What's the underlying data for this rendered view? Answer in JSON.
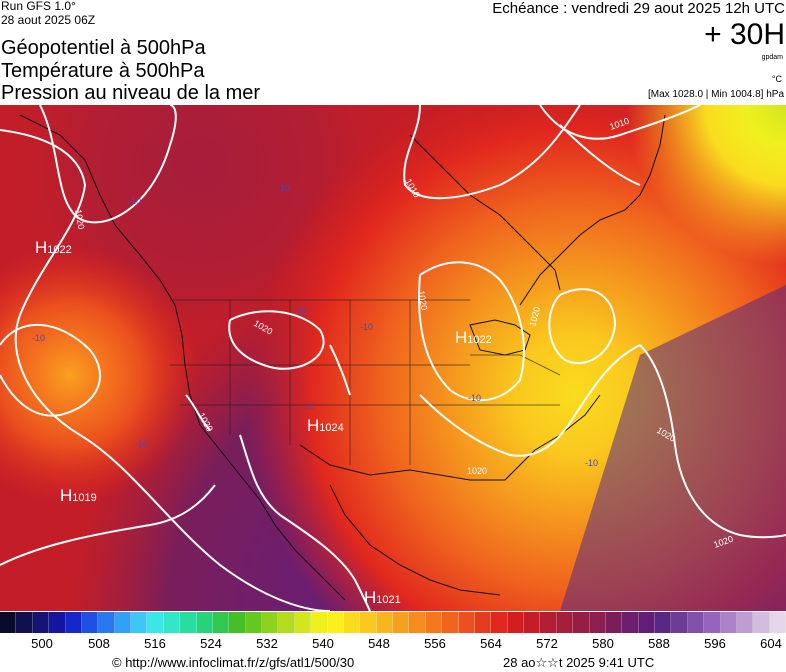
{
  "header": {
    "run": "Run GFS 1.0°",
    "run_date": "28 aout 2025 06Z",
    "valid_time": "Echéance : vendredi 29 aout 2025 12h UTC",
    "lead_time": "+ 30H",
    "unit_gpdam": "gpdam",
    "unit_c": "°C",
    "extremes": "[Max 1028.0 | Min 1004.8] hPa"
  },
  "titles": {
    "line1": "Géopotentiel à 500hPa",
    "line2": "Température à 500hPa",
    "line3": "Pression au niveau de la mer"
  },
  "map": {
    "isobar_labels": [
      "1010",
      "1010",
      "1020",
      "1020",
      "1020",
      "1020",
      "1020",
      "1020",
      "1020",
      "1020"
    ],
    "temp_labels": [
      "-10",
      "-10",
      "-10",
      "-10",
      "-10",
      "-10",
      "-10",
      "-10",
      "-10"
    ],
    "pressure_centers": [
      {
        "letter": "H",
        "value": "1022"
      },
      {
        "letter": "H",
        "value": "1022"
      },
      {
        "letter": "H",
        "value": "1024"
      },
      {
        "letter": "H",
        "value": "1019"
      },
      {
        "letter": "H",
        "value": "1021"
      }
    ]
  },
  "scale": {
    "labels": [
      "500",
      "508",
      "516",
      "524",
      "532",
      "540",
      "548",
      "556",
      "564",
      "572",
      "580",
      "588",
      "596",
      "604"
    ],
    "colors": [
      "#0a0a2a",
      "#101050",
      "#141478",
      "#1414a0",
      "#1428c8",
      "#1e50e6",
      "#2878f0",
      "#32a0f5",
      "#3cc8f5",
      "#3ce6e6",
      "#32e6c8",
      "#28dca0",
      "#28d278",
      "#32c850",
      "#46be28",
      "#64c81e",
      "#8cd21e",
      "#b4dc1e",
      "#d2e61e",
      "#f0f01e",
      "#faf01e",
      "#fadc1e",
      "#fac81e",
      "#fab41e",
      "#f5a01e",
      "#f58c1e",
      "#f5781e",
      "#f0641e",
      "#eb501e",
      "#e63c1e",
      "#e1281e",
      "#d21e1e",
      "#c31e28",
      "#b41e32",
      "#a51e3c",
      "#961e46",
      "#8c1e50",
      "#7a1e5a",
      "#6e1e6e",
      "#641e78",
      "#5a2882",
      "#6e3c96",
      "#8250aa",
      "#9664be",
      "#aa82c8",
      "#be9ed2",
      "#d2bedc",
      "#e6d6ea"
    ]
  },
  "footer": {
    "source": "© http://www.infoclimat.fr/z/gfs/atl1/500/30",
    "timestamp": "28 ao☆☆t 2025  9:41 UTC"
  }
}
